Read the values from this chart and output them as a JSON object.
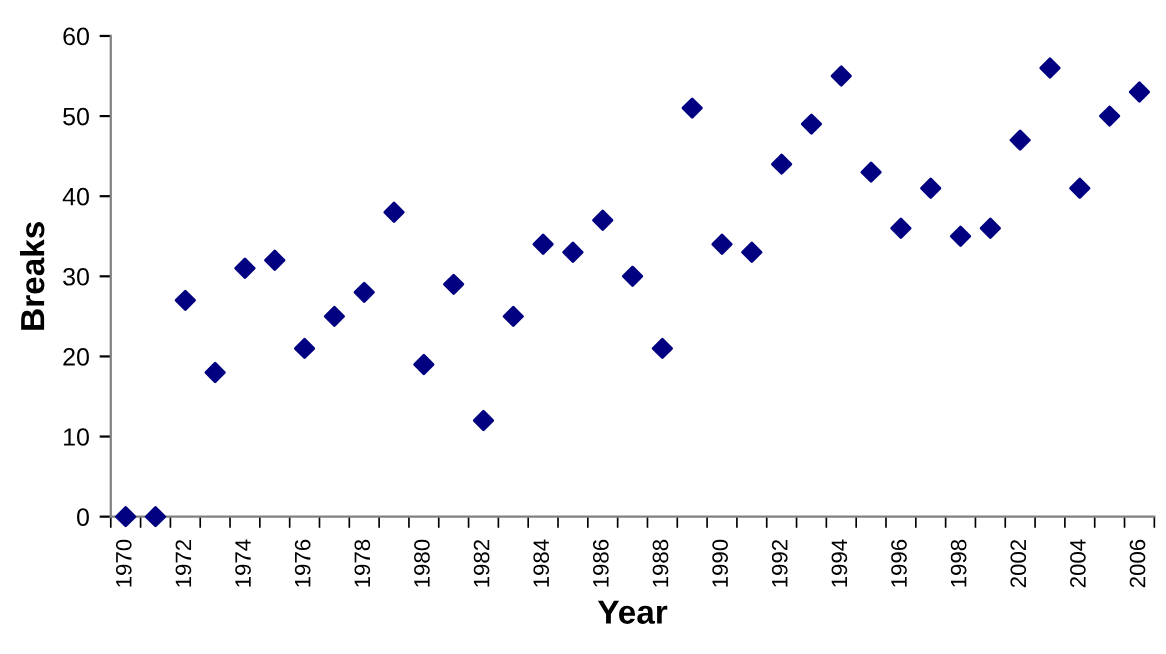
{
  "chart_data": {
    "type": "scatter",
    "xlabel": "Year",
    "ylabel": "Breaks",
    "categories": [
      "1970",
      null,
      "1972",
      null,
      "1974",
      null,
      "1976",
      null,
      "1978",
      null,
      "1980",
      null,
      "1982",
      null,
      "1984",
      null,
      "1986",
      null,
      "1988",
      null,
      "1990",
      null,
      "1992",
      null,
      "1994",
      null,
      "1996",
      null,
      "1998",
      null,
      "2002",
      null,
      "2004",
      null,
      "2006"
    ],
    "series": [
      {
        "color": "#000080",
        "values": [
          0,
          0,
          27,
          18,
          31,
          32,
          21,
          25,
          28,
          38,
          19,
          29,
          12,
          25,
          34,
          33,
          37,
          30,
          21,
          51,
          34,
          33,
          44,
          49,
          55,
          43,
          36,
          41,
          35,
          36,
          47,
          56,
          41,
          50,
          53
        ]
      }
    ],
    "ylim": [
      0,
      60
    ],
    "yticks": [
      0,
      10,
      20,
      30,
      40,
      50,
      60
    ],
    "marker": "diamond",
    "grid": false,
    "legend": false
  }
}
